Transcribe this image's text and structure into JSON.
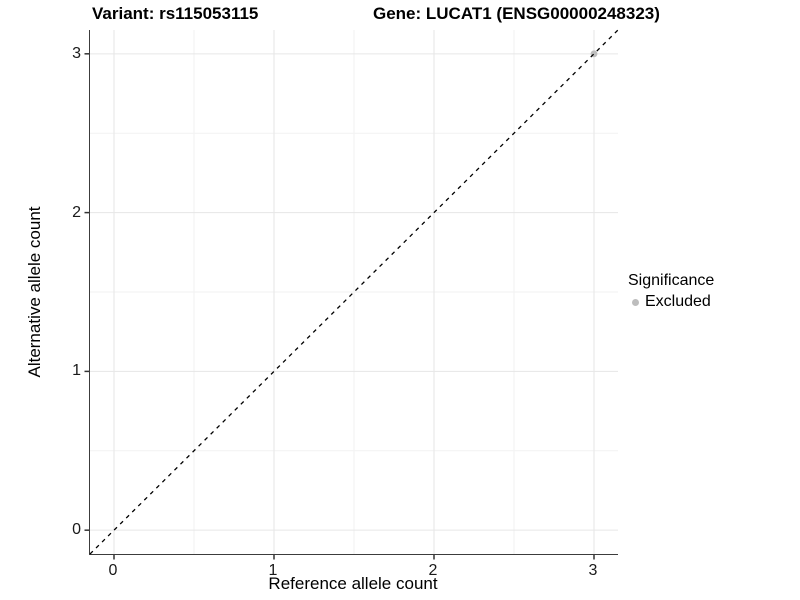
{
  "titles": {
    "variant": "Variant: rs115053115",
    "gene": "Gene: LUCAT1 (ENSG00000248323)"
  },
  "chart_data": {
    "type": "scatter",
    "title": "Variant: rs115053115   Gene: LUCAT1 (ENSG00000248323)",
    "xlabel": "Reference allele count",
    "ylabel": "Alternative allele count",
    "xlim": [
      -0.15,
      3.15
    ],
    "ylim": [
      -0.15,
      3.15
    ],
    "x_ticks": [
      0,
      1,
      2,
      3
    ],
    "y_ticks": [
      0,
      1,
      2,
      3
    ],
    "x_minor_ticks": [
      0.5,
      1.5,
      2.5
    ],
    "y_minor_ticks": [
      0.5,
      1.5,
      2.5
    ],
    "grid": "major and minor gridlines on white background",
    "reference_line": {
      "kind": "identity y=x",
      "style": "dashed",
      "color": "#000000"
    },
    "series": [
      {
        "name": "Excluded",
        "color": "#bdbdbd",
        "points": [
          {
            "x": 3,
            "y": 3
          }
        ]
      }
    ],
    "legend_position": "right"
  },
  "legend": {
    "title": "Significance",
    "items": [
      {
        "label": "Excluded",
        "color": "#bdbdbd"
      }
    ]
  },
  "colors": {
    "axis_line": "#3c3c3c",
    "tick_mark": "#333333",
    "tick_label": "#1a1a1a",
    "grid_major": "#e6e6e6",
    "grid_minor": "#f2f2f2",
    "dashed_line": "#000000",
    "point": "#bdbdbd",
    "background": "#ffffff"
  }
}
